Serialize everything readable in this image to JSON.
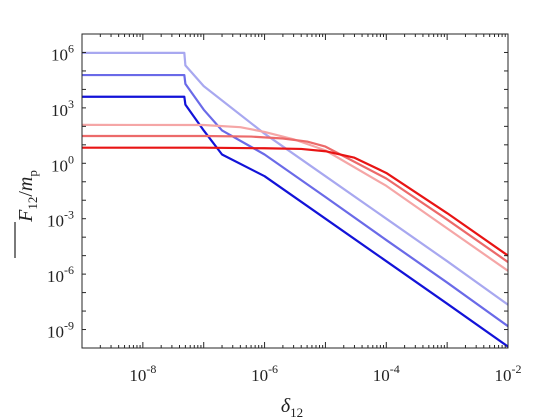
{
  "chart_data": {
    "type": "line",
    "xlabel": {
      "main": "δ",
      "sub": "12"
    },
    "ylabel": {
      "main": "F",
      "sub": "12",
      "sep": "/",
      "main2": "m",
      "sub2": "p"
    },
    "x_scale": "log",
    "y_scale": "log",
    "xlim": [
      1e-09,
      0.01
    ],
    "ylim": [
      1e-10,
      10000000.0
    ],
    "x_ticks": [
      {
        "value": 1e-08,
        "base": "10",
        "exp": "-8"
      },
      {
        "value": 1e-06,
        "base": "10",
        "exp": "-6"
      },
      {
        "value": 0.0001,
        "base": "10",
        "exp": "-4"
      },
      {
        "value": 0.01,
        "base": "10",
        "exp": "-2"
      }
    ],
    "y_ticks": [
      {
        "value": 1000000.0,
        "base": "10",
        "exp": "6"
      },
      {
        "value": 1000.0,
        "base": "10",
        "exp": "3"
      },
      {
        "value": 1.0,
        "base": "10",
        "exp": "0"
      },
      {
        "value": 0.001,
        "base": "10",
        "exp": "-3"
      },
      {
        "value": 1e-06,
        "base": "10",
        "exp": "-6"
      },
      {
        "value": 1e-09,
        "base": "10",
        "exp": "-9"
      }
    ],
    "grid": false,
    "series": [
      {
        "color": "#a8a8f0",
        "points": [
          [
            1e-09,
            950000
          ],
          [
            4.8e-08,
            950000
          ],
          [
            5e-08,
            200000
          ],
          [
            1e-07,
            15000
          ],
          [
            1e-06,
            40
          ],
          [
            1e-05,
            0.2
          ],
          [
            0.0001,
            0.001
          ],
          [
            0.001,
            5e-06
          ],
          [
            0.01,
            2.2e-08
          ]
        ]
      },
      {
        "color": "#6a6ae8",
        "points": [
          [
            1e-09,
            60000
          ],
          [
            4.8e-08,
            60000
          ],
          [
            5e-08,
            20000
          ],
          [
            1e-07,
            800
          ],
          [
            2e-07,
            60
          ],
          [
            1e-06,
            3
          ],
          [
            1e-05,
            0.015
          ],
          [
            0.0001,
            7e-05
          ],
          [
            0.001,
            3.5e-07
          ],
          [
            0.01,
            1.5e-09
          ]
        ]
      },
      {
        "color": "#1212d8",
        "points": [
          [
            1e-09,
            4000
          ],
          [
            4.8e-08,
            4000
          ],
          [
            5e-08,
            1500
          ],
          [
            1e-07,
            60
          ],
          [
            2e-07,
            3
          ],
          [
            1e-06,
            0.2
          ],
          [
            1e-05,
            0.001
          ],
          [
            0.0001,
            5e-06
          ],
          [
            0.001,
            2.5e-08
          ],
          [
            0.01,
            1.2e-10
          ]
        ]
      },
      {
        "color": "#f5a6a6",
        "points": [
          [
            1e-09,
            120
          ],
          [
            1e-07,
            118
          ],
          [
            4e-07,
            90
          ],
          [
            1e-06,
            50
          ],
          [
            3e-06,
            20
          ],
          [
            1e-05,
            5
          ],
          [
            0.0001,
            0.06
          ],
          [
            0.001,
            0.0003
          ],
          [
            0.01,
            1.5e-06
          ]
        ]
      },
      {
        "color": "#ec6a6a",
        "points": [
          [
            1e-09,
            30
          ],
          [
            1e-07,
            30
          ],
          [
            6e-07,
            28
          ],
          [
            2e-06,
            22
          ],
          [
            5e-06,
            15
          ],
          [
            1e-05,
            8
          ],
          [
            0.0001,
            0.15
          ],
          [
            0.001,
            0.0009
          ],
          [
            0.01,
            4.5e-06
          ]
        ]
      },
      {
        "color": "#e81414",
        "points": [
          [
            1e-09,
            7
          ],
          [
            1e-07,
            7
          ],
          [
            1e-06,
            6.5
          ],
          [
            4e-06,
            6
          ],
          [
            1e-05,
            4.5
          ],
          [
            3e-05,
            2
          ],
          [
            0.0001,
            0.3
          ],
          [
            0.001,
            0.002
          ],
          [
            0.01,
            1e-05
          ]
        ]
      }
    ]
  }
}
